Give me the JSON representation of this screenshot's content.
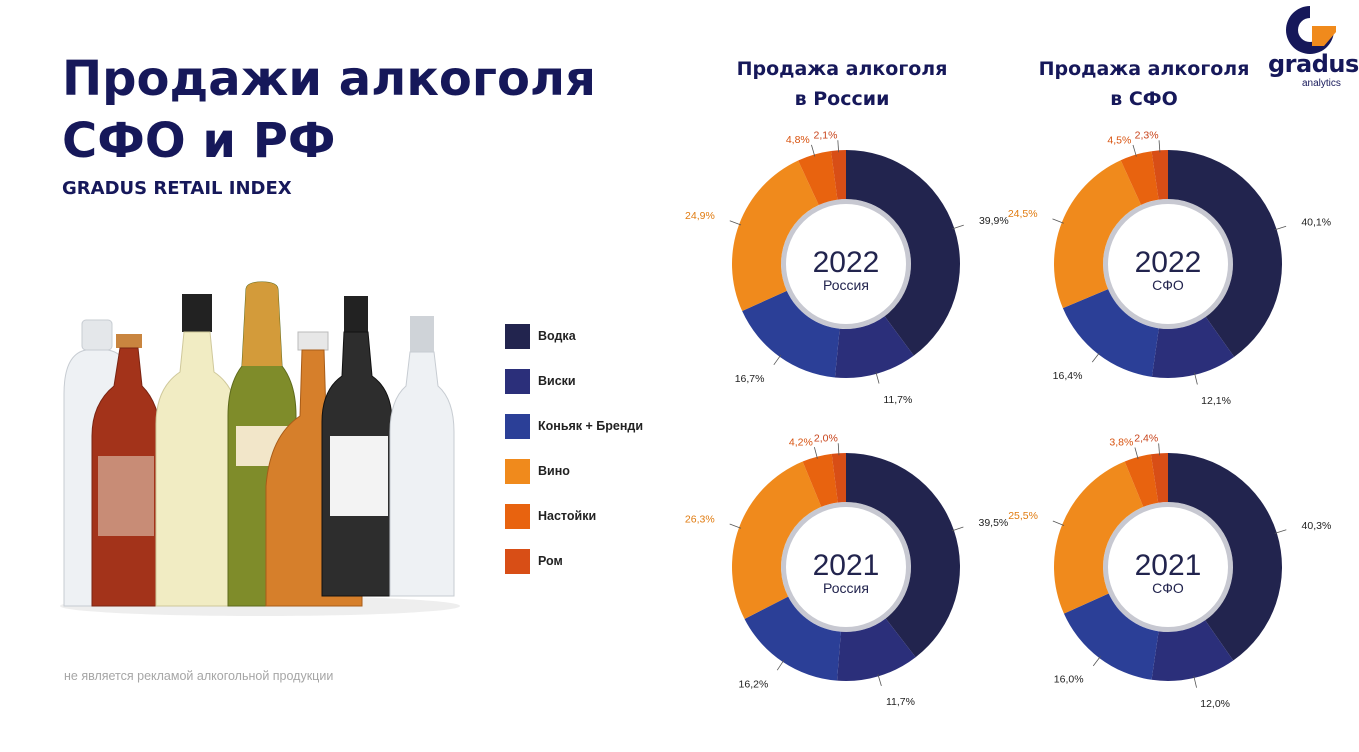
{
  "header": {
    "title_line1": "Продажи алкоголя",
    "title_line2": "СФО и РФ",
    "subtitle": "GRADUS RETAIL INDEX"
  },
  "logo": {
    "word": "gradus",
    "sub": "analytics",
    "icon": "gradus-g-logo"
  },
  "disclaimer": "не является рекламой алкогольной продукции",
  "image": {
    "icon": "alcohol-bottles-photo"
  },
  "legend": [
    {
      "label": "Водка",
      "color": "#22244e"
    },
    {
      "label": "Виски",
      "color": "#2b2f7a"
    },
    {
      "label": "Коньяк + Бренди",
      "color": "#2b3f97"
    },
    {
      "label": "Вино",
      "color": "#f08a1c"
    },
    {
      "label": "Настойки",
      "color": "#e8630f"
    },
    {
      "label": "Ром",
      "color": "#d84e16"
    }
  ],
  "columns": [
    {
      "line1": "Продажа алкоголя",
      "line2": "в России"
    },
    {
      "line1": "Продажа алкоголя",
      "line2": "в СФО"
    }
  ],
  "chart_data": [
    {
      "type": "pie",
      "variant": "donut",
      "center_year": "2022",
      "center_region": "Россия",
      "categories": [
        "Водка",
        "Виски",
        "Коньяк + Бренди",
        "Вино",
        "Настойки",
        "Ром"
      ],
      "values": [
        39.9,
        11.7,
        16.7,
        24.9,
        4.8,
        2.1
      ],
      "labels": [
        "39,9%",
        "11,7%",
        "16,7%",
        "24,9%",
        "4,8%",
        "2,1%"
      ]
    },
    {
      "type": "pie",
      "variant": "donut",
      "center_year": "2022",
      "center_region": "СФО",
      "categories": [
        "Водка",
        "Виски",
        "Коньяк + Бренди",
        "Вино",
        "Настойки",
        "Ром"
      ],
      "values": [
        40.1,
        12.1,
        16.4,
        24.5,
        4.5,
        2.3
      ],
      "labels": [
        "40,1%",
        "12,1%",
        "16,4%",
        "24,5%",
        "4,5%",
        "2,3%"
      ]
    },
    {
      "type": "pie",
      "variant": "donut",
      "center_year": "2021",
      "center_region": "Россия",
      "categories": [
        "Водка",
        "Виски",
        "Коньяк + Бренди",
        "Вино",
        "Настойки",
        "Ром"
      ],
      "values": [
        39.5,
        11.7,
        16.2,
        26.3,
        4.2,
        2.0
      ],
      "labels": [
        "39,5%",
        "11,7%",
        "16,2%",
        "26,3%",
        "4,2%",
        "2,0%"
      ]
    },
    {
      "type": "pie",
      "variant": "donut",
      "center_year": "2021",
      "center_region": "СФО",
      "categories": [
        "Водка",
        "Виски",
        "Коньяк + Бренди",
        "Вино",
        "Настойки",
        "Ром"
      ],
      "values": [
        40.3,
        12.0,
        16.0,
        25.5,
        3.8,
        2.4
      ],
      "labels": [
        "40,3%",
        "12,0%",
        "16,0%",
        "25,5%",
        "3,8%",
        "2,4%"
      ]
    }
  ]
}
